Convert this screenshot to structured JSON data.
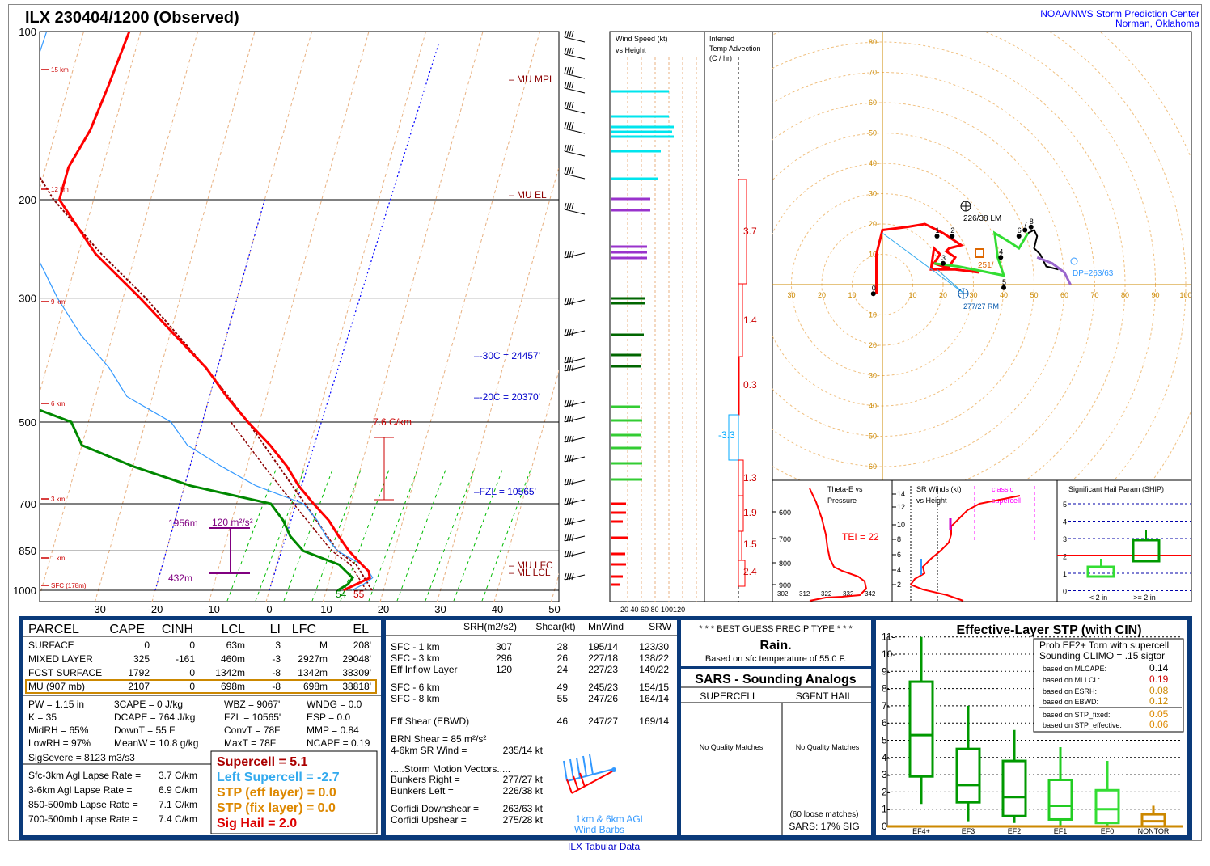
{
  "header": {
    "title": "ILX  230404/1200  (Observed)",
    "org_line1": "NOAA/NWS Storm Prediction Center",
    "org_line2": "Norman, Oklahoma"
  },
  "skewt": {
    "pressure_levels": [
      "100",
      "200",
      "300",
      "500",
      "700",
      "850",
      "1000"
    ],
    "temp_ticks": [
      "-30",
      "-20",
      "-10",
      "0",
      "10",
      "20",
      "30",
      "40",
      "50"
    ],
    "height_labels": [
      "15 km",
      "12 km",
      "9 km",
      "6 km",
      "3 km",
      "1 km",
      "SFC (178m)"
    ],
    "annotations": {
      "mu_mpl": "MU MPL",
      "mu_el": "MU EL",
      "minus30": "-30C = 24457'",
      "minus20": "-20C = 20370'",
      "fzl": "FZL = 10565'",
      "lapse": "7.6 C/km",
      "mu_lfc": "MU LFC",
      "ml_lcl": "ML LCL",
      "srh_val": "120 m²/s²",
      "srh_top": "1956m",
      "srh_bot": "432m",
      "sfc_t": "55",
      "sfc_td": "54"
    },
    "temperature_profile": [
      [
        1000,
        13
      ],
      [
        975,
        15
      ],
      [
        950,
        17
      ],
      [
        925,
        16.5
      ],
      [
        900,
        15
      ],
      [
        850,
        12
      ],
      [
        800,
        9.5
      ],
      [
        750,
        7
      ],
      [
        700,
        3.5
      ],
      [
        650,
        0
      ],
      [
        600,
        -3
      ],
      [
        550,
        -7
      ],
      [
        500,
        -12
      ],
      [
        450,
        -17
      ],
      [
        400,
        -22
      ],
      [
        350,
        -29
      ],
      [
        300,
        -37
      ],
      [
        250,
        -47
      ],
      [
        200,
        -56
      ],
      [
        175,
        -56
      ],
      [
        150,
        -54
      ],
      [
        125,
        -53
      ],
      [
        100,
        -52
      ]
    ],
    "dewpoint_profile": [
      [
        1000,
        12
      ],
      [
        975,
        13.5
      ],
      [
        950,
        14
      ],
      [
        925,
        12.5
      ],
      [
        900,
        11
      ],
      [
        850,
        4
      ],
      [
        800,
        1
      ],
      [
        750,
        -1
      ],
      [
        700,
        -4
      ],
      [
        650,
        -19
      ],
      [
        600,
        -30
      ],
      [
        550,
        -40
      ],
      [
        500,
        -43
      ],
      [
        450,
        -56
      ],
      [
        400,
        -60
      ],
      [
        350,
        -66
      ],
      [
        300,
        -70
      ],
      [
        250,
        -72
      ],
      [
        200,
        -76
      ],
      [
        150,
        -80
      ],
      [
        100,
        -85
      ]
    ]
  },
  "wind_speed_panel": {
    "title_line1": "Wind Speed (kt)",
    "title_line2": "vs Height",
    "axis": "20 40 60 80 100120"
  },
  "temp_adv_panel": {
    "title_line1": "Inferred",
    "title_line2": "Temp Advection",
    "title_line3": "(C / hr)",
    "values": [
      "3.7",
      "1.4",
      "0.3",
      "-3.3",
      "1.3",
      "1.9",
      "1.5",
      "2.4"
    ]
  },
  "hodograph": {
    "rings": [
      "10",
      "20",
      "30",
      "40",
      "50",
      "60",
      "70",
      "80"
    ],
    "x_ticks": [
      "30",
      "20",
      "10",
      "10",
      "20",
      "30",
      "40",
      "50",
      "60",
      "70",
      "80",
      "90",
      "100"
    ],
    "lm_label": "226/38 LM",
    "rm_label": "277/27 RM",
    "dp_label": "DP=263/63",
    "mean_label": "251/",
    "height_marks": [
      "0",
      "1",
      "2",
      "3",
      "4",
      "5",
      "6",
      "7",
      "8"
    ]
  },
  "theta_panel": {
    "title_line1": "Theta-E vs",
    "title_line2": "Pressure",
    "tei": "TEI = 22",
    "p_labels": [
      "600",
      "700",
      "800",
      "900"
    ],
    "x_labels": [
      "302",
      "312",
      "322",
      "332",
      "342"
    ]
  },
  "sr_panel": {
    "title_line1": "SR Winds (kt)",
    "title_line2": "vs Height",
    "classic": "classic",
    "supercell": "supercell",
    "h_labels": [
      "14",
      "12",
      "10",
      "8",
      "6",
      "4",
      "2"
    ]
  },
  "ship_panel": {
    "title": "Significant Hail Param (SHIP)",
    "y_labels": [
      "5",
      "4",
      "3",
      "2",
      "1",
      "0"
    ],
    "x_labels": [
      "< 2 in",
      ">= 2 in"
    ]
  },
  "params": {
    "head": [
      "PARCEL",
      "CAPE",
      "CINH",
      "LCL",
      "LI",
      "LFC",
      "EL"
    ],
    "rows": [
      [
        "SURFACE",
        "0",
        "0",
        "63m",
        "3",
        "M",
        "208'"
      ],
      [
        "MIXED LAYER",
        "325",
        "-161",
        "460m",
        "-3",
        "2927m",
        "29048'"
      ],
      [
        "FCST SURFACE",
        "1792",
        "0",
        "1342m",
        "-8",
        "1342m",
        "38309'"
      ],
      [
        "MU   (907 mb)",
        "2107",
        "0",
        "698m",
        "-8",
        "698m",
        "38818'"
      ]
    ],
    "misc": [
      [
        "PW = 1.15 in",
        "3CAPE = 0 J/kg",
        "WBZ = 9067'",
        "WNDG = 0.0"
      ],
      [
        "K = 35",
        "DCAPE = 764 J/kg",
        "FZL = 10565'",
        "ESP = 0.0"
      ],
      [
        "MidRH = 65%",
        "DownT = 55 F",
        "ConvT = 78F",
        "MMP = 0.84"
      ],
      [
        "LowRH = 97%",
        "MeanW = 10.8 g/kg",
        "MaxT = 78F",
        "NCAPE = 0.19"
      ]
    ],
    "sig_severe": "SigSevere = 8123 m3/s3",
    "lapse": [
      [
        "Sfc-3km Agl Lapse Rate =",
        "3.7 C/km"
      ],
      [
        "3-6km Agl Lapse Rate =",
        "6.9 C/km"
      ],
      [
        "850-500mb Lapse Rate =",
        "7.1 C/km"
      ],
      [
        "700-500mb Lapse Rate =",
        "7.4 C/km"
      ]
    ],
    "composites": [
      "Supercell = 5.1",
      "Left Supercell = -2.7",
      "STP (eff layer) = 0.0",
      "STP (fix layer) = 0.0",
      "Sig Hail = 2.0"
    ]
  },
  "kinematics": {
    "head": [
      "SRH(m2/s2)",
      "Shear(kt)",
      "MnWind",
      "SRW"
    ],
    "rows": [
      [
        "SFC - 1 km",
        "307",
        "28",
        "195/14",
        "123/30"
      ],
      [
        "SFC - 3 km",
        "296",
        "26",
        "227/18",
        "138/22"
      ],
      [
        "Eff Inflow Layer",
        "120",
        "24",
        "227/23",
        "149/22"
      ],
      [
        "SFC - 6 km",
        "",
        "49",
        "245/23",
        "154/15"
      ],
      [
        "SFC - 8 km",
        "",
        "55",
        "247/26",
        "164/14"
      ],
      [
        "Eff Shear (EBWD)",
        "",
        "46",
        "247/27",
        "169/14"
      ]
    ],
    "brn": "BRN Shear =  85 m²/s²",
    "sr46_label": "4-6km SR Wind =",
    "sr46_val": "235/14 kt",
    "storm_title": ".....Storm Motion Vectors.....",
    "vectors": [
      [
        "Bunkers Right =",
        "277/27 kt"
      ],
      [
        "Bunkers Left =",
        "226/38 kt"
      ],
      [
        "Corfidi Downshear =",
        "263/63 kt"
      ],
      [
        "Corfidi Upshear =",
        "275/28 kt"
      ]
    ],
    "barbs_caption1": "1km & 6km AGL",
    "barbs_caption2": "Wind Barbs"
  },
  "precip": {
    "title": "* * * BEST GUESS PRECIP TYPE * * *",
    "value": "Rain.",
    "note": "Based on sfc temperature of 55.0 F."
  },
  "sars": {
    "title": "SARS - Sounding Analogs",
    "col1": "SUPERCELL",
    "col2": "SGFNT HAIL",
    "col1_msg": "No Quality Matches",
    "col2_msg": "No Quality Matches",
    "loose": "(60 loose matches)",
    "sig": "SARS:  17% SIG"
  },
  "stp": {
    "title": "Effective-Layer STP (with CIN)",
    "prob1": "Prob EF2+ Torn with supercell",
    "prob2": "Sounding CLIMO = .15 sigtor",
    "y_labels": [
      "11",
      "10",
      "9",
      "8",
      "7",
      "6",
      "5",
      "4",
      "3",
      "2",
      "1",
      "0"
    ],
    "categories": [
      "EF4+",
      "EF3",
      "EF2",
      "EF1",
      "EF0",
      "NONTOR"
    ],
    "stats": [
      [
        "based on MLCAPE:",
        "0.14"
      ],
      [
        "based on MLLCL:",
        "0.19"
      ],
      [
        "based on ESRH:",
        "0.08"
      ],
      [
        "based on EBWD:",
        "0.12"
      ],
      [
        "based on STP_fixed:",
        "0.05"
      ],
      [
        "based on STP_effective:",
        "0.06"
      ]
    ]
  },
  "chart_data": {
    "type": "line",
    "title": "ILX  230404/1200  (Observed)",
    "xlabel": "",
    "ylabel": "",
    "x_range": [
      -30,
      50
    ],
    "y_range_mb": [
      1000,
      100
    ],
    "series": [
      {
        "name": "",
        "color": "#ff0000",
        "points_p_t": [
          [
            1000,
            13
          ],
          [
            975,
            15
          ],
          [
            950,
            17
          ],
          [
            925,
            16.5
          ],
          [
            900,
            15
          ],
          [
            850,
            12
          ],
          [
            800,
            9.5
          ],
          [
            750,
            7
          ],
          [
            700,
            3.5
          ],
          [
            650,
            0
          ],
          [
            600,
            -3
          ],
          [
            550,
            -7
          ],
          [
            500,
            -12
          ],
          [
            450,
            -17
          ],
          [
            400,
            -22
          ],
          [
            350,
            -29
          ],
          [
            300,
            -37
          ],
          [
            250,
            -47
          ],
          [
            200,
            -56
          ],
          [
            175,
            -56
          ],
          [
            150,
            -54
          ],
          [
            125,
            -53
          ],
          [
            100,
            -52
          ]
        ]
      },
      {
        "name": "",
        "color": "#008800",
        "points_p_t": [
          [
            1000,
            12
          ],
          [
            975,
            13.5
          ],
          [
            950,
            14
          ],
          [
            925,
            12.5
          ],
          [
            900,
            11
          ],
          [
            850,
            4
          ],
          [
            800,
            1
          ],
          [
            750,
            -1
          ],
          [
            700,
            -4
          ],
          [
            650,
            -19
          ],
          [
            600,
            -30
          ],
          [
            550,
            -40
          ],
          [
            500,
            -43
          ],
          [
            450,
            -56
          ],
          [
            400,
            -60
          ],
          [
            350,
            -66
          ],
          [
            300,
            -70
          ],
          [
            250,
            -72
          ],
          [
            200,
            -76
          ],
          [
            150,
            -80
          ],
          [
            100,
            -85
          ]
        ]
      }
    ],
    "stp_boxes": [
      {
        "category": "EF4+",
        "min": 1.3,
        "q1": 2.9,
        "median": 5.3,
        "q3": 8.4,
        "max": 11
      },
      {
        "category": "EF3",
        "min": 0.3,
        "q1": 1.4,
        "median": 2.4,
        "q3": 4.5,
        "max": 7
      },
      {
        "category": "EF2",
        "min": 0.2,
        "q1": 0.6,
        "median": 1.7,
        "q3": 3.8,
        "max": 5.6
      },
      {
        "category": "EF1",
        "min": 0,
        "q1": 0.4,
        "median": 1.2,
        "q3": 2.7,
        "max": 4.6
      },
      {
        "category": "EF0",
        "min": 0,
        "q1": 0.2,
        "median": 1,
        "q3": 2.1,
        "max": 3.8
      },
      {
        "category": "NONTOR",
        "min": 0,
        "q1": 0,
        "median": 0.3,
        "q3": 0.7,
        "max": 1.2
      }
    ]
  }
}
